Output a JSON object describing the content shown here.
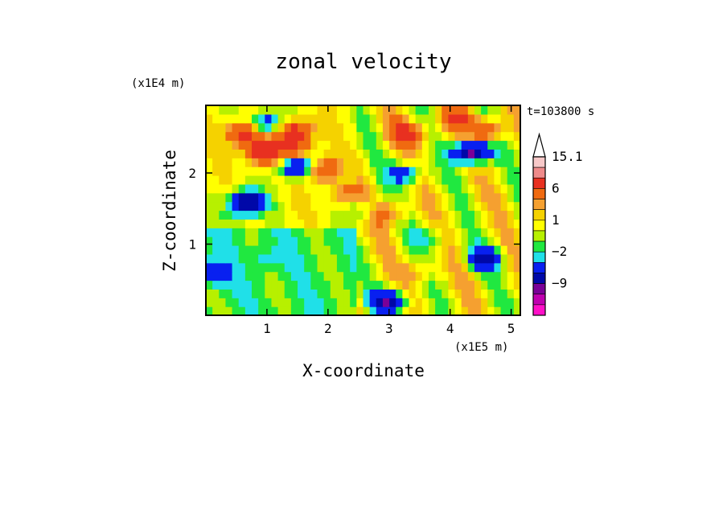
{
  "chart_data": {
    "type": "heatmap",
    "title": "zonal velocity",
    "xlabel": "X-coordinate",
    "ylabel": "Z-coordinate",
    "x_scale_label": "(x1E5 m)",
    "y_scale_label": "(x1E4 m)",
    "time_label": "t=103800 s",
    "xlim": [
      0,
      5.15
    ],
    "ylim": [
      0,
      2.95
    ],
    "x_ticks": [
      "1",
      "2",
      "3",
      "4",
      "5"
    ],
    "y_ticks": [
      "1",
      "2"
    ],
    "grid": false,
    "legend": "colorbar right",
    "colorbar": {
      "labels": [
        "15.1",
        "6",
        "1",
        "-2",
        "-9"
      ],
      "levels": [
        15.1,
        12,
        9,
        6,
        3,
        2,
        1,
        0,
        -1,
        -2,
        -3,
        -6,
        -9,
        -12,
        -15
      ],
      "colors": [
        "#f7c8c8",
        "#ef8a8a",
        "#e83020",
        "#f06a10",
        "#f5a030",
        "#f5d200",
        "#ffff00",
        "#b7f000",
        "#20e840",
        "#20e0e8",
        "#0820f0",
        "#0008a8",
        "#7a0098",
        "#c000b0",
        "#ff10c8"
      ]
    },
    "field": {
      "description_values": "zonal velocity field (m/s)",
      "rows": 24,
      "cols": 48,
      "background": 0.5,
      "features": [
        {
          "x": 1.0,
          "z": 2.7,
          "value": -6
        },
        {
          "x": 1.45,
          "z": 2.6,
          "value": 7
        },
        {
          "x": 0.65,
          "z": 2.55,
          "value": 8
        },
        {
          "x": 0.95,
          "z": 2.3,
          "value": 8
        },
        {
          "x": 1.5,
          "z": 2.1,
          "value": -8
        },
        {
          "x": 1.45,
          "z": 2.35,
          "value": 6
        },
        {
          "x": 0.7,
          "z": 1.6,
          "value": -10
        },
        {
          "x": 1.9,
          "z": 2.05,
          "value": 6
        },
        {
          "x": 2.3,
          "z": 1.7,
          "value": 3
        },
        {
          "x": 3.0,
          "z": 1.45,
          "value": 4
        },
        {
          "x": 2.6,
          "z": 1.5,
          "value": -3
        },
        {
          "x": 3.3,
          "z": 2.55,
          "value": 7
        },
        {
          "x": 3.3,
          "z": 2.0,
          "value": -5
        },
        {
          "x": 3.7,
          "z": 1.1,
          "value": -3
        },
        {
          "x": 4.35,
          "z": 2.3,
          "value": -12
        },
        {
          "x": 4.6,
          "z": 2.6,
          "value": 6
        },
        {
          "x": 4.1,
          "z": 2.75,
          "value": 5
        },
        {
          "x": 4.55,
          "z": 0.8,
          "value": -6
        },
        {
          "x": 3.0,
          "z": 0.2,
          "value": -9
        },
        {
          "x": 0.1,
          "z": 0.6,
          "value": -4
        },
        {
          "x": 0.5,
          "z": 1.4,
          "value": -2
        },
        {
          "x": 1.0,
          "z": 0.8,
          "value": -1.5
        },
        {
          "x": 3.5,
          "z": 0.6,
          "value": 2.5
        }
      ]
    }
  }
}
